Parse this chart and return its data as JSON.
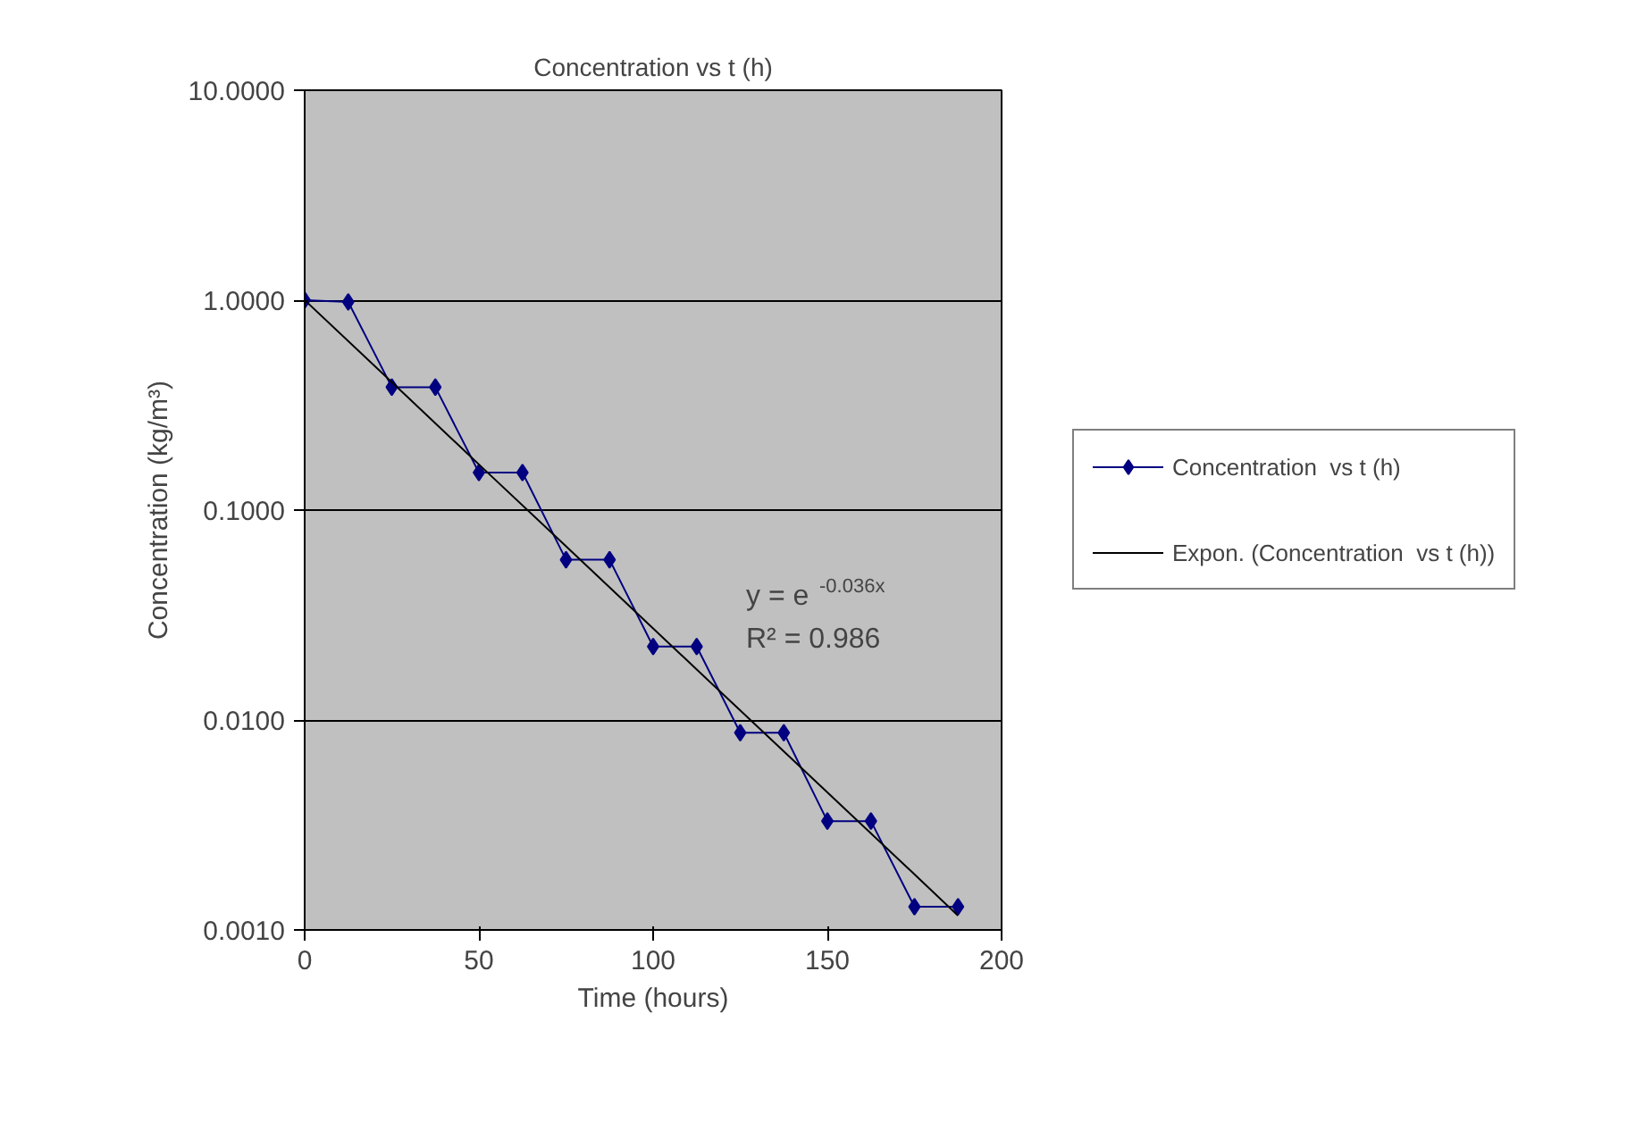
{
  "chart_data": {
    "type": "line",
    "title": "Concentration vs t (h)",
    "xlabel": "Time (hours)",
    "ylabel": "Concentration (kg/m³)",
    "log": "y",
    "xlim": [
      0,
      200
    ],
    "xticks": [
      0,
      50,
      100,
      150,
      200
    ],
    "ylim": [
      0.001,
      10
    ],
    "yticks": [
      {
        "value": 0.001,
        "label": "0.0010"
      },
      {
        "value": 0.01,
        "label": "0.0100"
      },
      {
        "value": 0.1,
        "label": "0.1000"
      },
      {
        "value": 1,
        "label": "1.0000"
      },
      {
        "value": 10,
        "label": "10.0000"
      }
    ],
    "grid": "y",
    "legend": "right",
    "marker": "diamond",
    "series": [
      {
        "name": "Concentration  vs t (h)",
        "color": "#000080",
        "x": [
          0,
          12.5,
          25,
          37.5,
          50,
          62.5,
          75,
          87.5,
          100,
          112.5,
          125,
          137.5,
          150,
          162.5,
          175,
          187.5
        ],
        "values": [
          1.0,
          0.98,
          0.385,
          0.385,
          0.151,
          0.151,
          0.058,
          0.058,
          0.0224,
          0.0224,
          0.0087,
          0.0087,
          0.0033,
          0.0033,
          0.00129,
          0.00129
        ]
      },
      {
        "name": "Expon. (Concentration  vs t (h))",
        "type": "line",
        "marker": "none",
        "color": "#000000",
        "x": [
          0,
          25,
          50,
          75,
          100,
          125,
          150,
          175,
          187.5
        ],
        "values": [
          1.0,
          0.407,
          0.165,
          0.0672,
          0.0273,
          0.0111,
          0.00452,
          0.00184,
          0.00117
        ]
      }
    ],
    "annotations": [
      "y = e$^{-0.036x}$",
      "R² = 0.986"
    ]
  }
}
